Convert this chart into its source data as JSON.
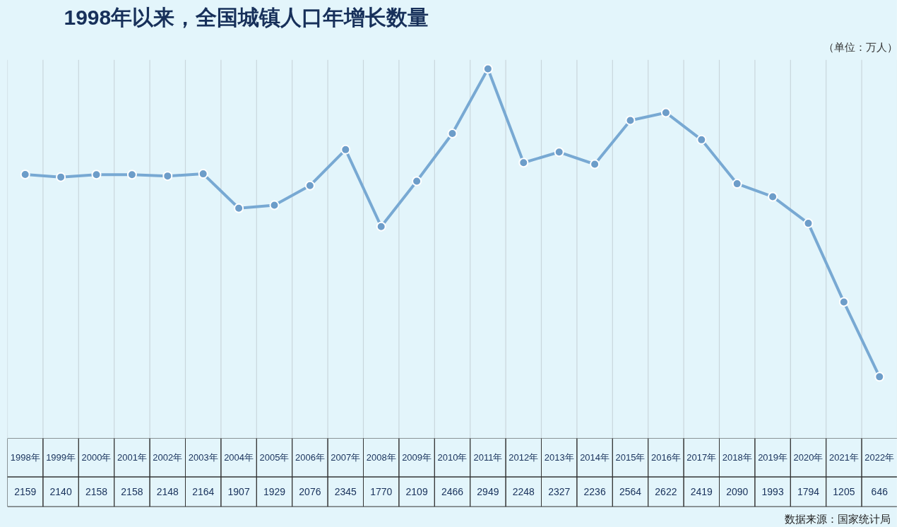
{
  "chart_data": {
    "type": "line",
    "title": "1998年以来，全国城镇人口年增长数量",
    "annotations": [
      "（单位：万人）",
      "数据来源：国家统计局"
    ],
    "categories": [
      "1998年",
      "1999年",
      "2000年",
      "2001年",
      "2002年",
      "2003年",
      "2004年",
      "2005年",
      "2006年",
      "2007年",
      "2008年",
      "2009年",
      "2010年",
      "2011年",
      "2012年",
      "2013年",
      "2014年",
      "2015年",
      "2016年",
      "2017年",
      "2018年",
      "2019年",
      "2020年",
      "2021年",
      "2022年"
    ],
    "series": [
      {
        "color": "#78a9d3",
        "values": [
          2159,
          2140,
          2158,
          2158,
          2148,
          2164,
          1907,
          1929,
          2076,
          2345,
          1770,
          2109,
          2466,
          2949,
          2248,
          2327,
          2236,
          2564,
          2622,
          2419,
          2090,
          1993,
          1794,
          1205,
          646
        ]
      }
    ],
    "marker": "circle",
    "grid": "x",
    "data_labels": true
  }
}
